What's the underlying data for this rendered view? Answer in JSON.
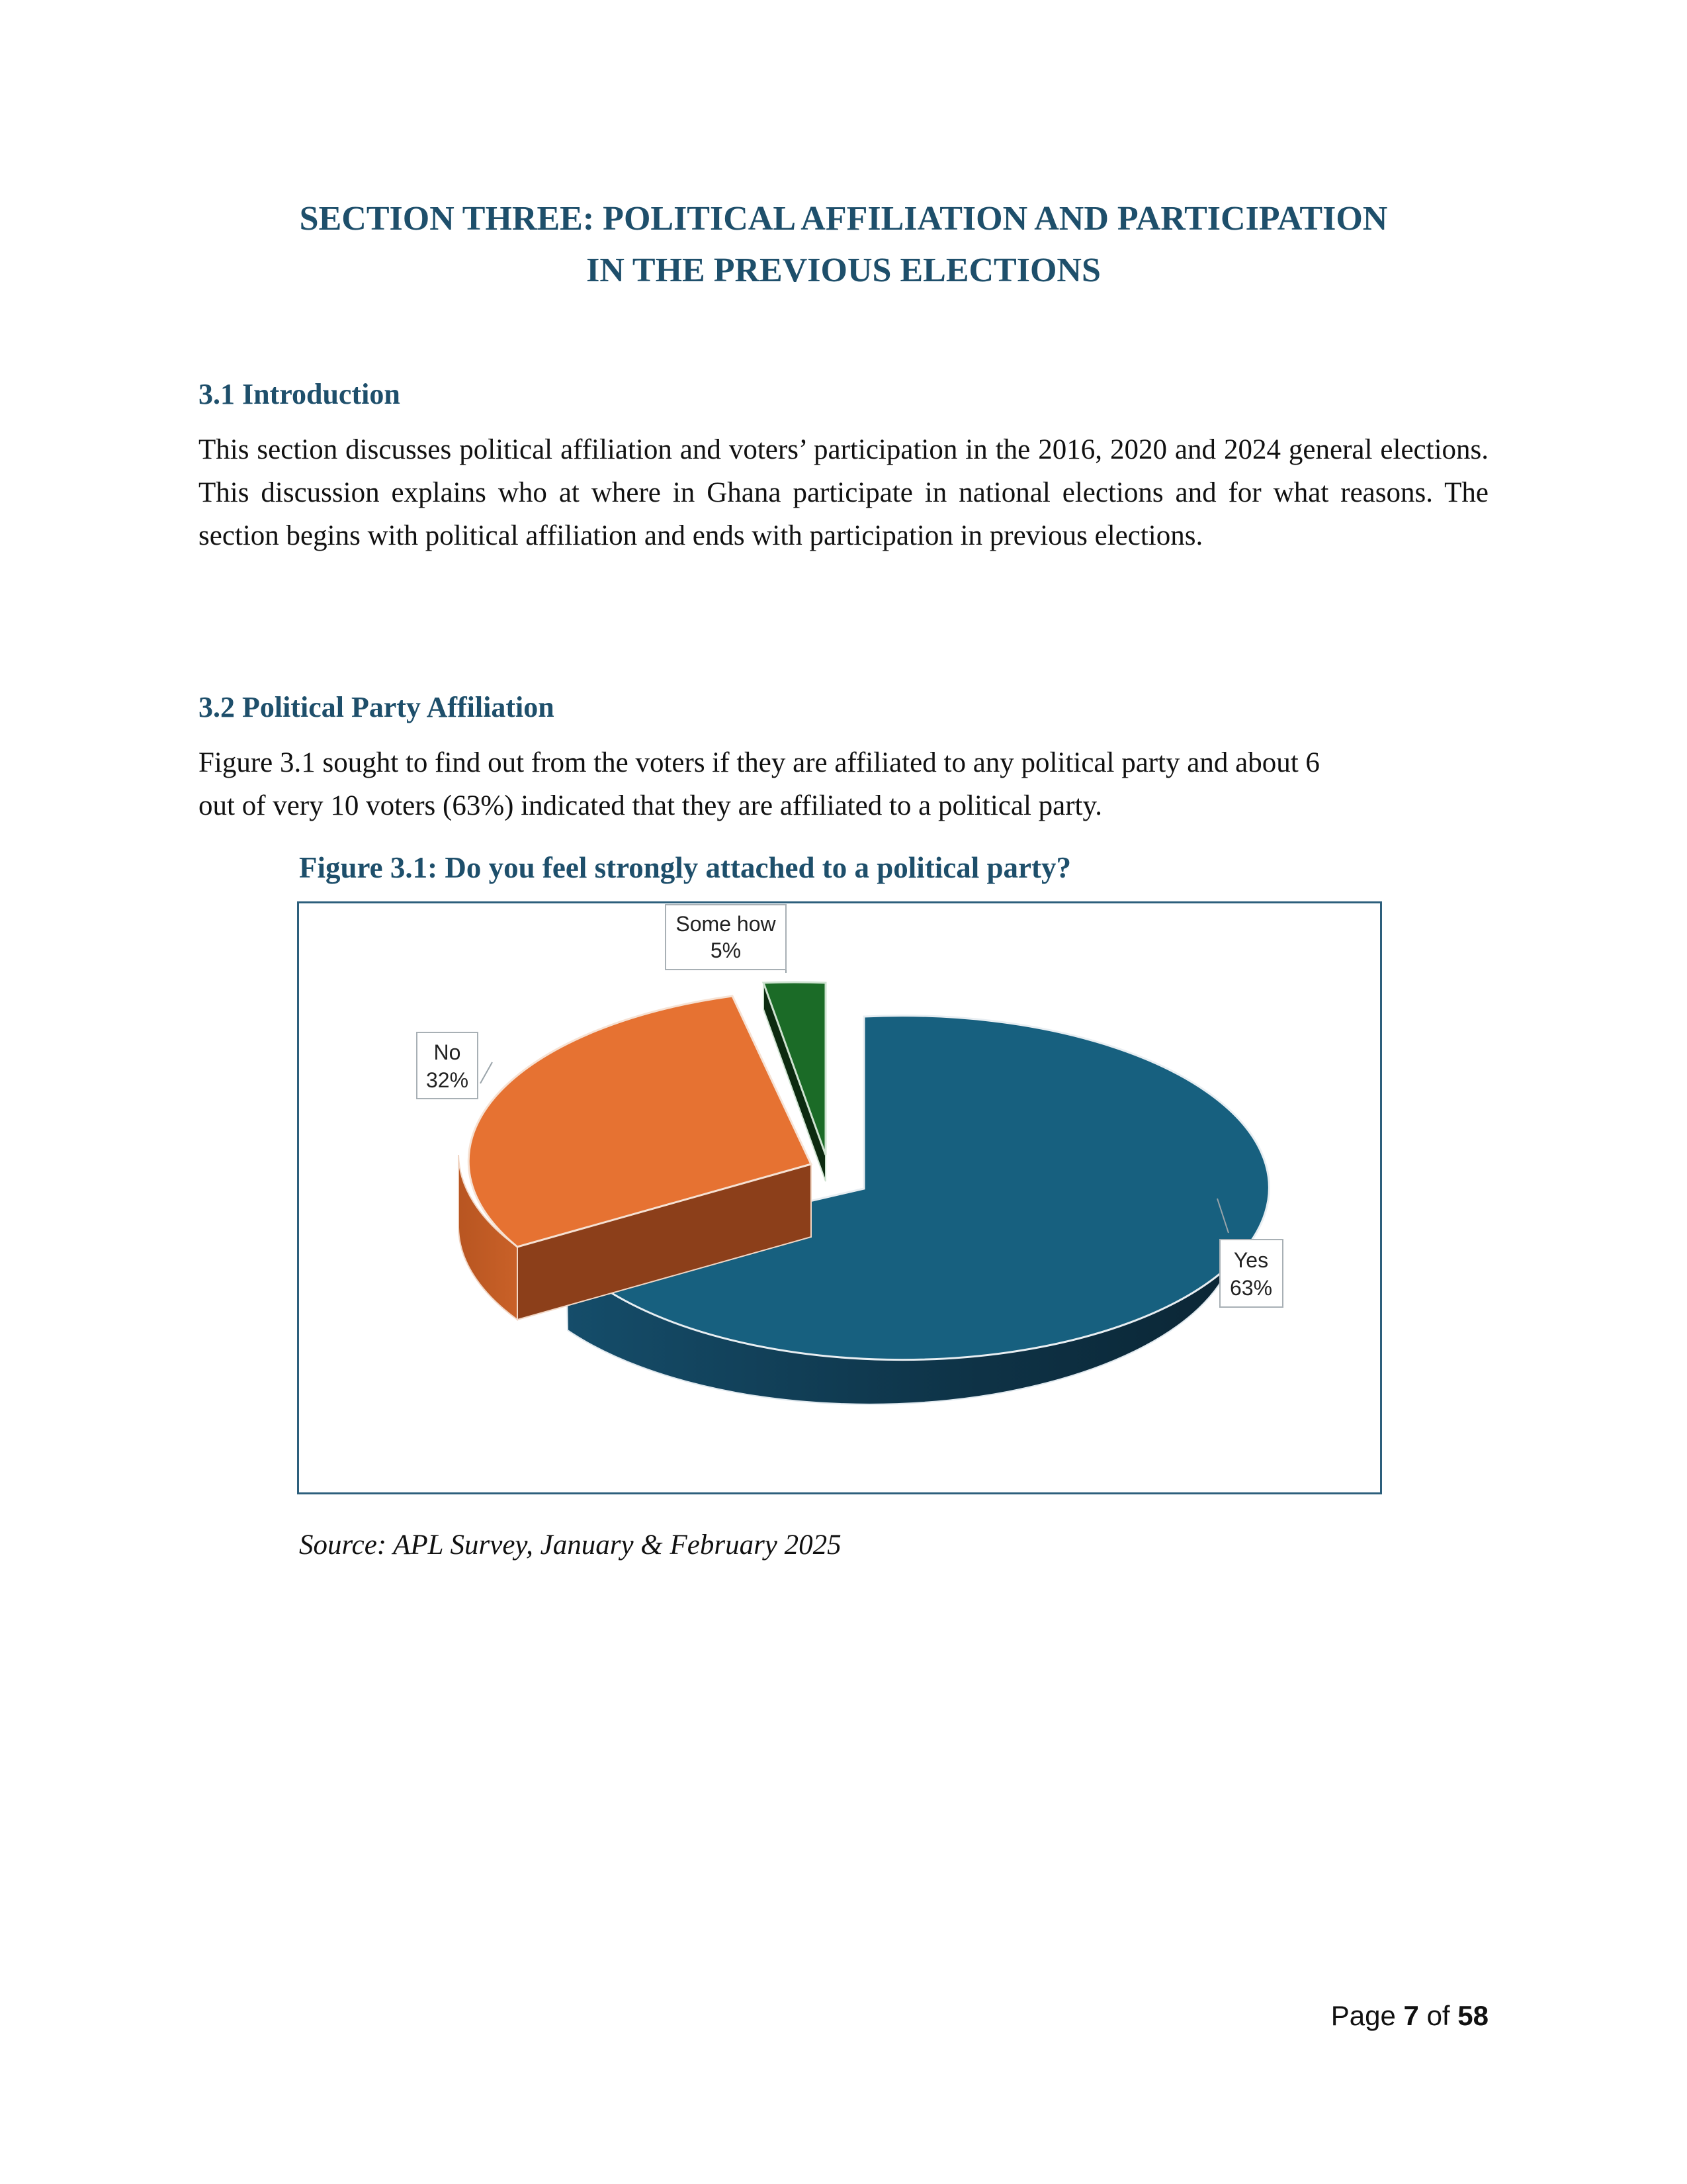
{
  "section_title_line1": "SECTION THREE: POLITICAL AFFILIATION AND PARTICIPATION",
  "section_title_line2": "IN THE PREVIOUS ELECTIONS",
  "intro": {
    "heading": "3.1 Introduction",
    "body": "This section discusses political affiliation and voters’ participation in the 2016, 2020 and 2024 general elections. This discussion explains who at where in Ghana participate in national elections and for what reasons. The section begins with political affiliation and ends with participation in previous elections."
  },
  "affiliation": {
    "heading": "3.2 Political Party Affiliation",
    "body_line1": "Figure 3.1 sought to find out from the voters if they are affiliated to any political party and about 6",
    "body_line2": "out of very 10 voters (63%) indicated that they are affiliated to a political party."
  },
  "figure_caption": "Figure 3.1: Do you feel strongly attached to a political party?",
  "chart_data": {
    "type": "pie",
    "style": "3d-exploded",
    "slices": [
      {
        "label": "Yes",
        "value": 63,
        "label_text": "Yes",
        "value_text": "63%",
        "color": "#17607f"
      },
      {
        "label": "No",
        "value": 32,
        "label_text": "No",
        "value_text": "32%",
        "color": "#e67232"
      },
      {
        "label": "Some how",
        "value": 5,
        "label_text": "Some how",
        "value_text": "5%",
        "color": "#1b6b27"
      }
    ]
  },
  "source": "Source: APL Survey, January & February 2025",
  "page": {
    "prefix": "Page ",
    "current": "7",
    "sep": " of ",
    "total": "58"
  }
}
